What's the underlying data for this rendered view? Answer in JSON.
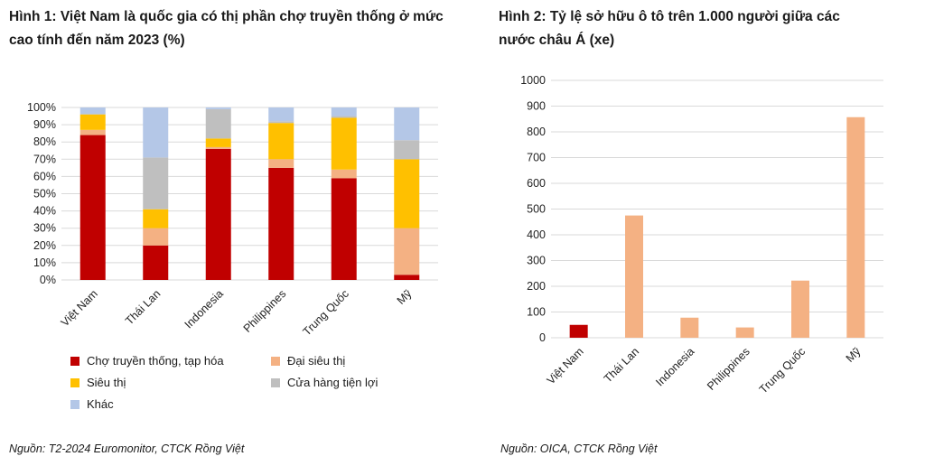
{
  "chart_data": [
    {
      "type": "bar",
      "stacked": true,
      "title": "Hình 1: Việt Nam là quốc gia có thị phần chợ truyền thống ở mức cao tính đến năm 2023 (%)",
      "categories": [
        "Việt Nam",
        "Thái Lan",
        "Indonesia",
        "Philippines",
        "Trung Quốc",
        "Mỹ"
      ],
      "y_ticks": [
        "0%",
        "10%",
        "20%",
        "30%",
        "40%",
        "50%",
        "60%",
        "70%",
        "80%",
        "90%",
        "100%"
      ],
      "ylim": [
        0,
        100
      ],
      "grid": true,
      "legend_placement": "bottom",
      "series": [
        {
          "name": "Chợ truyền thống, tạp hóa",
          "color": "#c00000",
          "values": [
            84,
            20,
            76,
            65,
            59,
            3
          ]
        },
        {
          "name": "Đại siêu thị",
          "color": "#f4b183",
          "values": [
            3,
            10,
            1,
            5,
            5,
            27
          ]
        },
        {
          "name": "Siêu thị",
          "color": "#ffc000",
          "values": [
            9,
            11,
            5,
            21,
            30,
            40
          ]
        },
        {
          "name": "Cửa hàng tiện lợi",
          "color": "#bfbfbf",
          "values": [
            0,
            30,
            17,
            1,
            1,
            11
          ]
        },
        {
          "name": "Khác",
          "color": "#b4c7e7",
          "values": [
            4,
            29,
            1,
            8,
            5,
            19
          ]
        }
      ],
      "source": "Nguồn: T2-2024 Euromonitor, CTCK Rồng Việt"
    },
    {
      "type": "bar",
      "title": "Hình 2: Tỷ lệ sở hữu ô tô trên 1.000 người giữa các nước châu Á (xe)",
      "categories": [
        "Việt Nam",
        "Thái Lan",
        "Indonesia",
        "Philippines",
        "Trung Quốc",
        "Mỹ"
      ],
      "values": [
        50,
        475,
        78,
        40,
        222,
        857
      ],
      "colors": [
        "#c00000",
        "#f4b183",
        "#f4b183",
        "#f4b183",
        "#f4b183",
        "#f4b183"
      ],
      "y_ticks": [
        "0",
        "100",
        "200",
        "300",
        "400",
        "500",
        "600",
        "700",
        "800",
        "900",
        "1000"
      ],
      "ylim": [
        0,
        1000
      ],
      "grid": true,
      "source": "Nguồn: OICA, CTCK Rồng Việt"
    }
  ]
}
